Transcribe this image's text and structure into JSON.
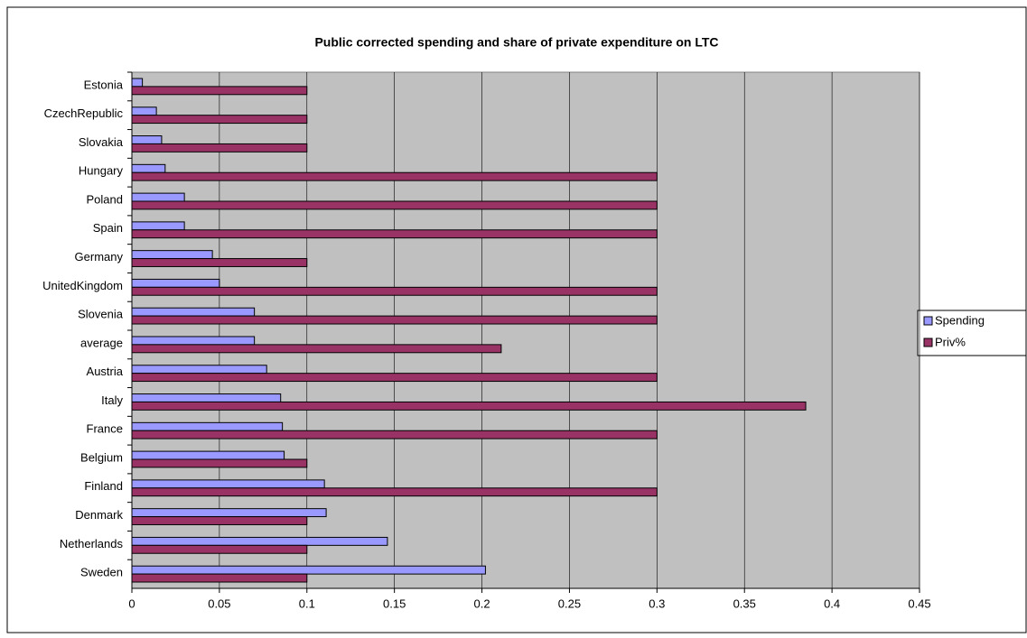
{
  "chart_data": {
    "type": "barh",
    "title": "Public corrected spending and share of private expenditure on LTC",
    "categories": [
      "Estonia",
      "CzechRepublic",
      "Slovakia",
      "Hungary",
      "Poland",
      "Spain",
      "Germany",
      "UnitedKingdom",
      "Slovenia",
      "average",
      "Austria",
      "Italy",
      "France",
      "Belgium",
      "Finland",
      "Denmark",
      "Netherlands",
      "Sweden"
    ],
    "series": [
      {
        "name": "Spending",
        "color": "#9999ff",
        "values": [
          0.006,
          0.014,
          0.017,
          0.019,
          0.03,
          0.03,
          0.046,
          0.05,
          0.07,
          0.07,
          0.077,
          0.085,
          0.086,
          0.087,
          0.11,
          0.111,
          0.146,
          0.202
        ]
      },
      {
        "name": "Priv%",
        "color": "#993366",
        "values": [
          0.1,
          0.1,
          0.1,
          0.3,
          0.3,
          0.3,
          0.1,
          0.3,
          0.3,
          0.211,
          0.3,
          0.385,
          0.3,
          0.1,
          0.3,
          0.1,
          0.1,
          0.1
        ]
      }
    ],
    "xlim": [
      0,
      0.45
    ],
    "xticks": [
      0,
      0.05,
      0.1,
      0.15,
      0.2,
      0.25,
      0.3,
      0.35,
      0.4,
      0.45
    ],
    "grid": true,
    "legend": "right"
  }
}
